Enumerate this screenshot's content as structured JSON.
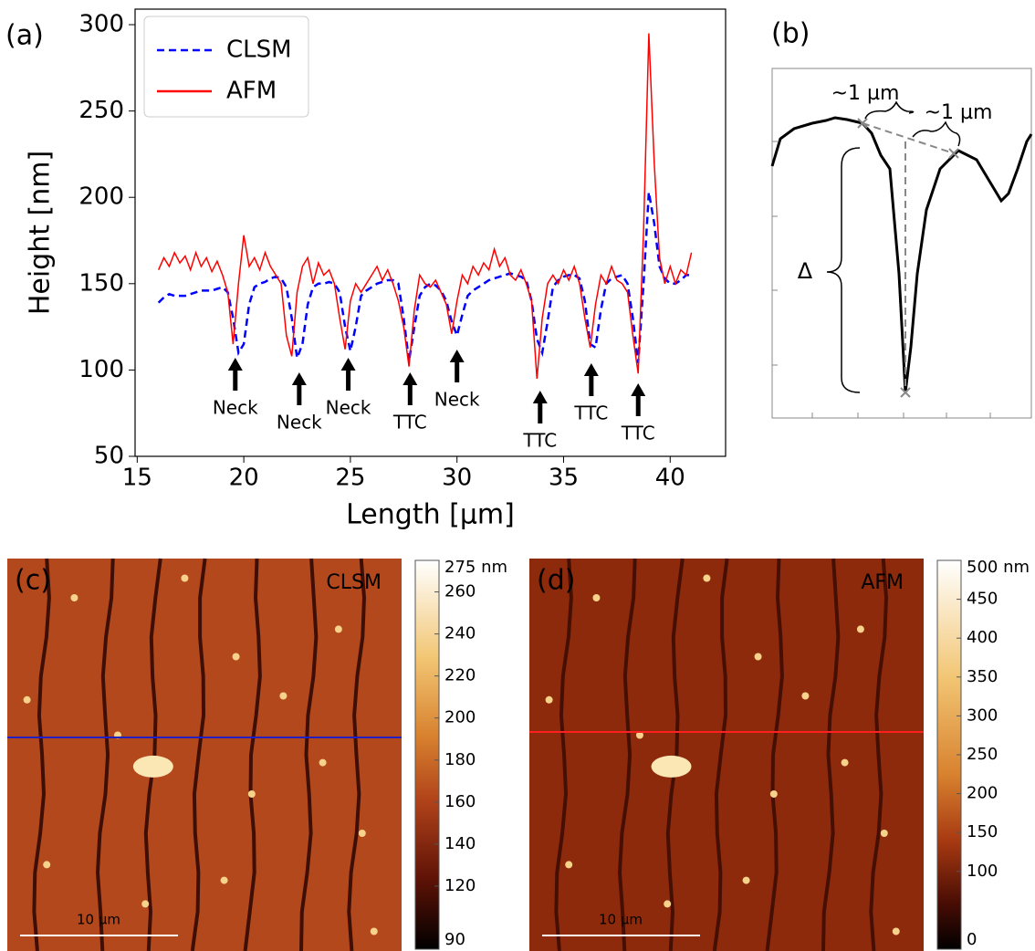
{
  "chart_data": [
    {
      "type": "line",
      "panel": "(a)",
      "x_label": "Length [μm]",
      "y_label": "Height [nm]",
      "xlim": [
        14.9,
        42.6
      ],
      "ylim": [
        50,
        309
      ],
      "xticks": [
        15,
        20,
        25,
        30,
        35,
        40
      ],
      "yticks": [
        50,
        100,
        150,
        200,
        250,
        300
      ],
      "legend": "upper left",
      "x": [
        16,
        16.25,
        16.5,
        16.75,
        17,
        17.25,
        17.5,
        17.75,
        18,
        18.25,
        18.5,
        18.75,
        19,
        19.25,
        19.5,
        19.75,
        20,
        20.25,
        20.5,
        20.75,
        21,
        21.25,
        21.5,
        21.75,
        22,
        22.25,
        22.5,
        22.75,
        23,
        23.25,
        23.5,
        23.75,
        24,
        24.25,
        24.5,
        24.75,
        25,
        25.25,
        25.5,
        25.75,
        26,
        26.25,
        26.5,
        26.75,
        27,
        27.25,
        27.5,
        27.75,
        28,
        28.25,
        28.5,
        28.75,
        29,
        29.25,
        29.5,
        29.75,
        30,
        30.25,
        30.5,
        30.75,
        31,
        31.25,
        31.5,
        31.75,
        32,
        32.25,
        32.5,
        32.75,
        33,
        33.25,
        33.5,
        33.75,
        34,
        34.25,
        34.5,
        34.75,
        35,
        35.25,
        35.5,
        35.75,
        36,
        36.25,
        36.5,
        36.75,
        37,
        37.25,
        37.5,
        37.75,
        38,
        38.25,
        38.5,
        38.75,
        39,
        39.25,
        39.5,
        39.75,
        40,
        40.25,
        40.5,
        40.75,
        41
      ],
      "series": [
        {
          "name": "CLSM",
          "color": "#0000ff",
          "linestyle": "dashed",
          "values": [
            139,
            142,
            144,
            143,
            143,
            143,
            144,
            145,
            146,
            146,
            146,
            147,
            148,
            145,
            130,
            110,
            115,
            138,
            148,
            150,
            151,
            153,
            154,
            153,
            148,
            130,
            107,
            115,
            138,
            148,
            150,
            150,
            151,
            150,
            145,
            125,
            111,
            125,
            143,
            146,
            148,
            150,
            151,
            152,
            152,
            150,
            130,
            105,
            125,
            143,
            148,
            150,
            149,
            146,
            140,
            128,
            120,
            132,
            143,
            146,
            148,
            150,
            152,
            153,
            154,
            155,
            156,
            155,
            154,
            152,
            140,
            118,
            110,
            128,
            148,
            152,
            154,
            155,
            155,
            153,
            140,
            115,
            113,
            135,
            150,
            153,
            154,
            155,
            150,
            130,
            104,
            150,
            203,
            185,
            160,
            153,
            150,
            150,
            152,
            155,
            155
          ]
        },
        {
          "name": "AFM",
          "color": "#ff0000",
          "linestyle": "solid",
          "values": [
            158,
            165,
            160,
            168,
            162,
            166,
            158,
            168,
            160,
            165,
            157,
            163,
            155,
            145,
            115,
            150,
            178,
            160,
            165,
            158,
            168,
            160,
            155,
            150,
            120,
            108,
            145,
            160,
            165,
            150,
            162,
            155,
            158,
            150,
            130,
            112,
            140,
            150,
            145,
            150,
            155,
            160,
            152,
            158,
            150,
            140,
            125,
            102,
            135,
            155,
            150,
            148,
            152,
            145,
            138,
            121,
            140,
            155,
            150,
            160,
            155,
            162,
            158,
            170,
            160,
            165,
            155,
            152,
            158,
            150,
            140,
            95,
            130,
            150,
            155,
            150,
            158,
            152,
            160,
            150,
            130,
            113,
            138,
            155,
            150,
            160,
            152,
            150,
            145,
            120,
            98,
            180,
            295,
            220,
            165,
            150,
            160,
            150,
            158,
            155,
            168
          ]
        }
      ],
      "annotations": [
        {
          "text": "Neck",
          "x": 19.6
        },
        {
          "text": "Neck",
          "x": 22.6
        },
        {
          "text": "Neck",
          "x": 24.9
        },
        {
          "text": "TTC",
          "x": 27.8
        },
        {
          "text": "Neck",
          "x": 30.0
        },
        {
          "text": "TTC",
          "x": 33.9
        },
        {
          "text": "TTC",
          "x": 36.3
        },
        {
          "text": "TTC",
          "x": 38.5
        }
      ]
    },
    {
      "type": "image",
      "panel": "(c)",
      "label": "CLSM",
      "scale_bar": "10 µm",
      "profile_color": "#2020c0",
      "colorbar": {
        "lim": [
          90,
          275
        ],
        "ticks": [
          {
            "value": 275,
            "label": "275 nm"
          },
          260,
          240,
          220,
          200,
          180,
          160,
          140,
          120,
          90
        ]
      }
    },
    {
      "type": "image",
      "panel": "(d)",
      "label": "AFM",
      "scale_bar": "10 µm",
      "profile_color": "#ff2020",
      "colorbar": {
        "lim": [
          0,
          500
        ],
        "ticks": [
          {
            "value": 500,
            "label": "500 nm"
          },
          450,
          400,
          350,
          300,
          250,
          200,
          150,
          100,
          0
        ]
      }
    }
  ],
  "schematic": {
    "panel": "(b)",
    "labels": [
      "~1 µm",
      "~1 µm",
      "Δ"
    ]
  }
}
